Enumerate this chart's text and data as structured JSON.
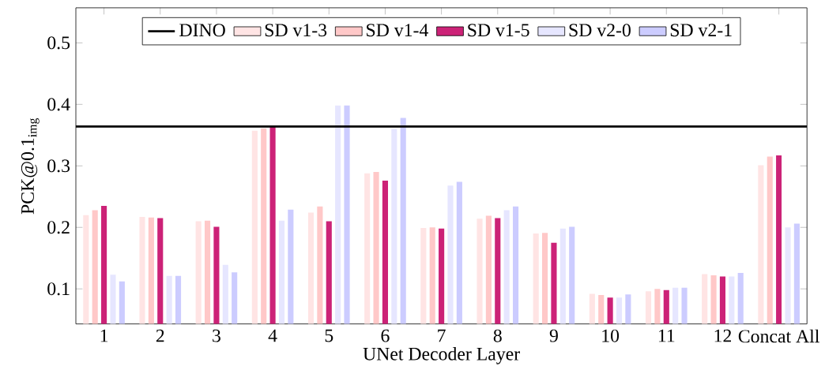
{
  "chart_data": {
    "type": "bar",
    "xlabel": "UNet Decoder Layer",
    "ylabel": "PCK@0.1$_{img}$",
    "categories": [
      "1",
      "2",
      "3",
      "4",
      "5",
      "6",
      "7",
      "8",
      "9",
      "10",
      "11",
      "12",
      "Concat All"
    ],
    "series": [
      {
        "name": "SD v1-3",
        "color": "#ffe4e4",
        "values": [
          0.22,
          0.217,
          0.21,
          0.357,
          0.224,
          0.288,
          0.199,
          0.214,
          0.19,
          0.092,
          0.096,
          0.124,
          0.301
        ]
      },
      {
        "name": "SD v1-4",
        "color": "#ffc8c8",
        "values": [
          0.228,
          0.216,
          0.211,
          0.361,
          0.234,
          0.29,
          0.2,
          0.219,
          0.191,
          0.09,
          0.1,
          0.122,
          0.315
        ]
      },
      {
        "name": "SD v1-5",
        "color": "#cc2277",
        "values": [
          0.235,
          0.215,
          0.201,
          0.365,
          0.21,
          0.276,
          0.198,
          0.215,
          0.175,
          0.086,
          0.098,
          0.12,
          0.317
        ]
      },
      {
        "name": "SD v2-0",
        "color": "#e6e6ff",
        "values": [
          0.123,
          0.121,
          0.139,
          0.211,
          0.398,
          0.36,
          0.268,
          0.228,
          0.198,
          0.086,
          0.102,
          0.12,
          0.2
        ]
      },
      {
        "name": "SD v2-1",
        "color": "#ccccff",
        "values": [
          0.112,
          0.121,
          0.127,
          0.229,
          0.398,
          0.378,
          0.274,
          0.234,
          0.201,
          0.091,
          0.102,
          0.126,
          0.206
        ]
      }
    ],
    "ref_lines": [
      {
        "axis": "y",
        "value": 0.364,
        "label": "DINO",
        "color": "#000000"
      }
    ],
    "ylim": [
      0.043,
      0.557
    ],
    "yticks": [
      0.1,
      0.2,
      0.3,
      0.4,
      0.5
    ],
    "legend": "top"
  }
}
